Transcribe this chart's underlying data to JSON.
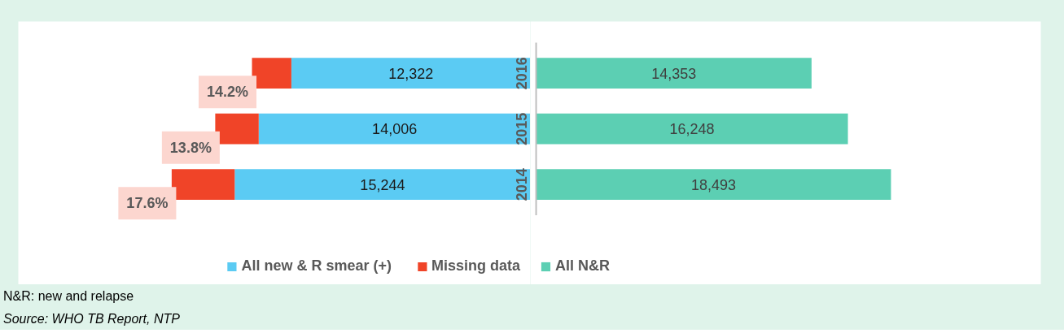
{
  "chart_data": [
    {
      "type": "bar",
      "orientation": "horizontal",
      "stacked": true,
      "categories": [
        "2016",
        "2015",
        "2014"
      ],
      "xlim": [
        26400,
        0
      ],
      "series": [
        {
          "name": "All new & R smear (+)",
          "color": "#5bcbf3",
          "values": [
            12322,
            14006,
            15244
          ],
          "value_labels": [
            "12,322",
            "14,006",
            "15,244"
          ]
        },
        {
          "name": "Missing data",
          "color": "#f04428",
          "values": [
            2031,
            2242,
            3249
          ]
        }
      ],
      "legend": "bottom right",
      "grid": false,
      "annotations": [
        {
          "text": "14.2%",
          "x": 14353,
          "y": "2016"
        },
        {
          "text": "13.8%",
          "x": 16248,
          "y": "2015"
        },
        {
          "text": "17.6%",
          "x": 18493,
          "y": "2014"
        },
        "N&R: new and relapse",
        "Source: WHO TB Report, NTP"
      ]
    },
    {
      "type": "bar",
      "orientation": "horizontal",
      "stacked": true,
      "categories": [
        "2016",
        "2015",
        "2014"
      ],
      "tick_labels": false,
      "xlim": [
        -300,
        26300
      ],
      "series": [
        {
          "name": "All N&R",
          "color": "#5ccfb3",
          "values": [
            14353,
            16248,
            18493
          ],
          "value_labels": [
            "14,353",
            "16,248",
            "18,493"
          ]
        }
      ],
      "ref_lines": [
        {
          "axis": "x",
          "value": 0,
          "color": "#bfbfbf"
        }
      ],
      "legend": "bottom left",
      "grid": false
    }
  ]
}
